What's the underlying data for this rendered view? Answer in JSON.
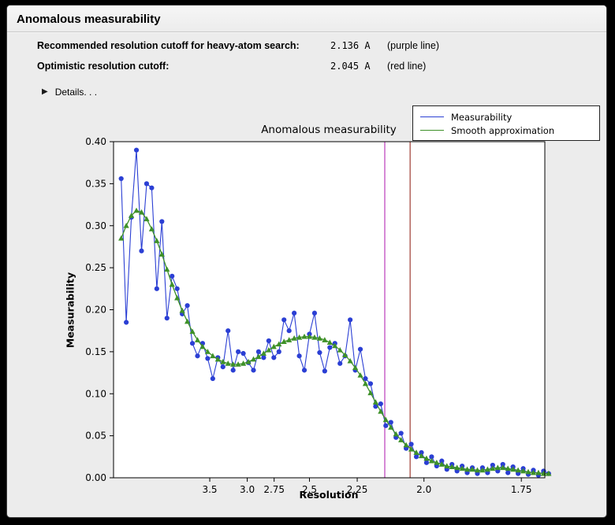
{
  "window": {
    "title": "Anomalous measurability"
  },
  "info": {
    "rows": [
      {
        "label": "Recommended resolution cutoff for heavy-atom search:",
        "value": "2.136 A",
        "note": "(purple line)"
      },
      {
        "label": "Optimistic resolution cutoff:",
        "value": "2.045 A",
        "note": "(red line)"
      }
    ],
    "disclosure_icon": "▶",
    "details_label": "Details. . ."
  },
  "chart_data": {
    "type": "line",
    "title": "Anomalous measurability",
    "xlabel": "Resolution",
    "ylabel": "Measurability",
    "x_axis_transform": "1/d^2 (resolution in Angstrom, reversed)",
    "x_range_s": [
      0.006,
      0.345
    ],
    "ylim": [
      0.0,
      0.4
    ],
    "y_ticks": [
      0.0,
      0.05,
      0.1,
      0.15,
      0.2,
      0.25,
      0.3,
      0.35,
      0.4
    ],
    "x_ticks": [
      {
        "label": "3.5",
        "s": 0.08163
      },
      {
        "label": "3.0",
        "s": 0.11111
      },
      {
        "label": "2.75",
        "s": 0.13223
      },
      {
        "label": "2.5",
        "s": 0.16
      },
      {
        "label": "2.25",
        "s": 0.19753
      },
      {
        "label": "2.0",
        "s": 0.25
      },
      {
        "label": "1.75",
        "s": 0.32653
      }
    ],
    "s": [
      0.012,
      0.016,
      0.02,
      0.024,
      0.028,
      0.032,
      0.036,
      0.04,
      0.044,
      0.048,
      0.052,
      0.056,
      0.06,
      0.064,
      0.068,
      0.072,
      0.076,
      0.08,
      0.084,
      0.088,
      0.092,
      0.096,
      0.1,
      0.104,
      0.108,
      0.112,
      0.116,
      0.12,
      0.124,
      0.128,
      0.132,
      0.136,
      0.14,
      0.144,
      0.148,
      0.152,
      0.156,
      0.16,
      0.164,
      0.168,
      0.172,
      0.176,
      0.18,
      0.184,
      0.188,
      0.192,
      0.196,
      0.2,
      0.204,
      0.208,
      0.212,
      0.216,
      0.22,
      0.224,
      0.228,
      0.232,
      0.236,
      0.24,
      0.244,
      0.248,
      0.252,
      0.256,
      0.26,
      0.264,
      0.268,
      0.272,
      0.276,
      0.28,
      0.284,
      0.288,
      0.292,
      0.296,
      0.3,
      0.304,
      0.308,
      0.312,
      0.316,
      0.32,
      0.324,
      0.328,
      0.332,
      0.336,
      0.34,
      0.344,
      0.348
    ],
    "series": [
      {
        "name": "Measurability",
        "color": "#2b3fd4",
        "marker": "circle",
        "values": [
          0.356,
          0.185,
          0.31,
          0.39,
          0.27,
          0.35,
          0.345,
          0.225,
          0.305,
          0.19,
          0.24,
          0.225,
          0.195,
          0.205,
          0.16,
          0.145,
          0.16,
          0.142,
          0.118,
          0.143,
          0.132,
          0.175,
          0.128,
          0.15,
          0.148,
          0.137,
          0.128,
          0.15,
          0.143,
          0.163,
          0.143,
          0.15,
          0.188,
          0.175,
          0.196,
          0.145,
          0.128,
          0.171,
          0.196,
          0.149,
          0.127,
          0.155,
          0.16,
          0.136,
          0.145,
          0.188,
          0.128,
          0.153,
          0.118,
          0.112,
          0.085,
          0.088,
          0.062,
          0.066,
          0.048,
          0.053,
          0.035,
          0.04,
          0.025,
          0.03,
          0.018,
          0.025,
          0.014,
          0.02,
          0.01,
          0.016,
          0.008,
          0.014,
          0.006,
          0.012,
          0.005,
          0.012,
          0.006,
          0.015,
          0.008,
          0.016,
          0.006,
          0.013,
          0.005,
          0.011,
          0.004,
          0.009,
          0.003,
          0.008,
          0.005
        ]
      },
      {
        "name": "Smooth approximation",
        "color": "#3e9128",
        "marker": "triangle",
        "values": [
          0.285,
          0.3,
          0.312,
          0.318,
          0.316,
          0.308,
          0.296,
          0.282,
          0.266,
          0.248,
          0.23,
          0.214,
          0.199,
          0.186,
          0.174,
          0.164,
          0.156,
          0.15,
          0.145,
          0.141,
          0.138,
          0.136,
          0.135,
          0.135,
          0.136,
          0.138,
          0.141,
          0.144,
          0.148,
          0.152,
          0.156,
          0.159,
          0.162,
          0.164,
          0.166,
          0.167,
          0.168,
          0.168,
          0.167,
          0.166,
          0.164,
          0.161,
          0.157,
          0.152,
          0.146,
          0.139,
          0.131,
          0.122,
          0.112,
          0.101,
          0.09,
          0.079,
          0.069,
          0.06,
          0.052,
          0.045,
          0.039,
          0.034,
          0.03,
          0.026,
          0.023,
          0.02,
          0.018,
          0.016,
          0.014,
          0.013,
          0.012,
          0.011,
          0.01,
          0.01,
          0.009,
          0.009,
          0.01,
          0.011,
          0.012,
          0.012,
          0.011,
          0.01,
          0.009,
          0.008,
          0.007,
          0.006,
          0.006,
          0.005,
          0.005
        ]
      }
    ],
    "vlines": [
      {
        "name": "purple line",
        "resolution_A": 2.136,
        "s": 0.21919,
        "color": "#bb3cbb"
      },
      {
        "name": "red line",
        "resolution_A": 2.045,
        "s": 0.23912,
        "color": "#9e3b32"
      }
    ],
    "legend_position": "top-right"
  }
}
